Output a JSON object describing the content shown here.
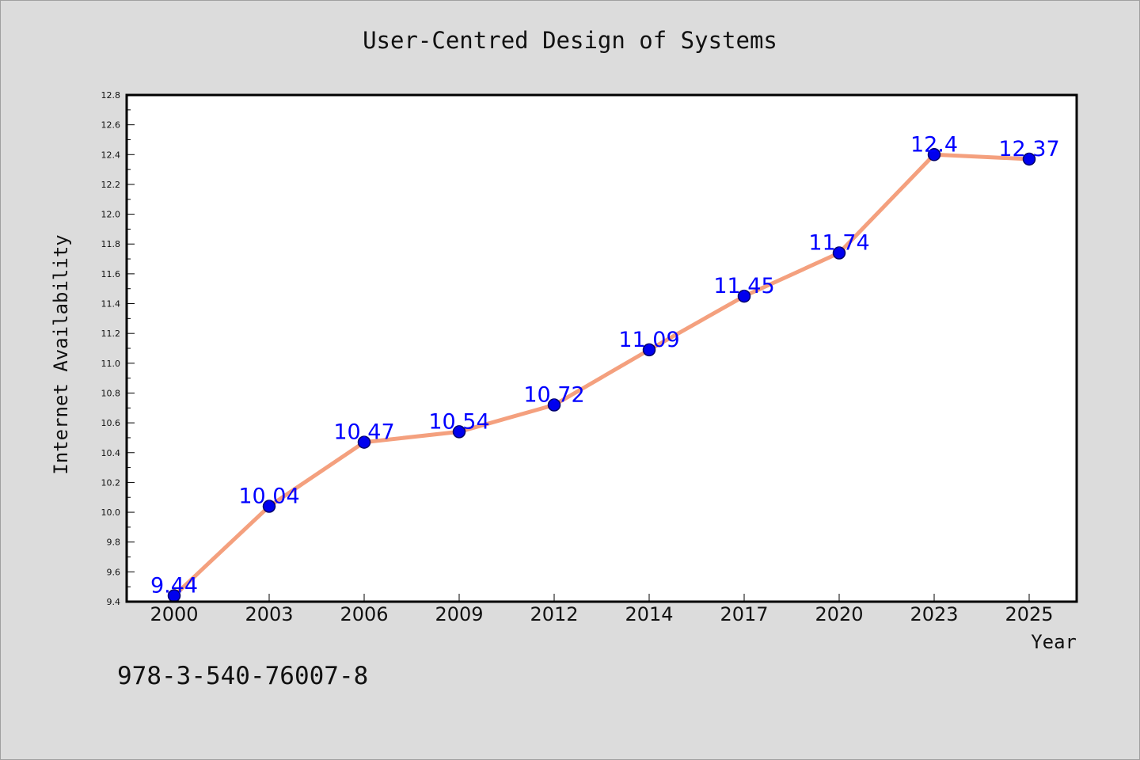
{
  "chart_data": {
    "type": "line",
    "title": "User-Centred Design of Systems",
    "xlabel": "Year",
    "ylabel": "Internet Availability",
    "categories": [
      "2000",
      "2003",
      "2006",
      "2009",
      "2012",
      "2014",
      "2017",
      "2020",
      "2023",
      "2025"
    ],
    "series": [
      {
        "values": [
          9.44,
          10.04,
          10.47,
          10.54,
          10.72,
          11.09,
          11.45,
          11.74,
          12.4,
          12.37
        ]
      }
    ],
    "data_labels": [
      "9.44",
      "10.04",
      "10.47",
      "10.54",
      "10.72",
      "11.09",
      "11.45",
      "11.74",
      "12.4",
      "12.37"
    ],
    "ylim": [
      9.4,
      12.8
    ],
    "y_ticks": [
      "9.4",
      "9.6",
      "9.8",
      "10.0",
      "10.2",
      "10.4",
      "10.6",
      "10.8",
      "11.0",
      "11.2",
      "11.4",
      "11.6",
      "11.8",
      "12.0",
      "12.2",
      "12.4",
      "12.6",
      "12.8"
    ],
    "grid": false,
    "legend": "none",
    "colors": {
      "line": "#f4a07e",
      "marker": "#0000ee",
      "marker_edge": "#00006b",
      "label": "#0000ff",
      "plot_bg": "#ffffff",
      "page_bg": "#dcdcdc"
    }
  },
  "footnote": "978-3-540-76007-8"
}
